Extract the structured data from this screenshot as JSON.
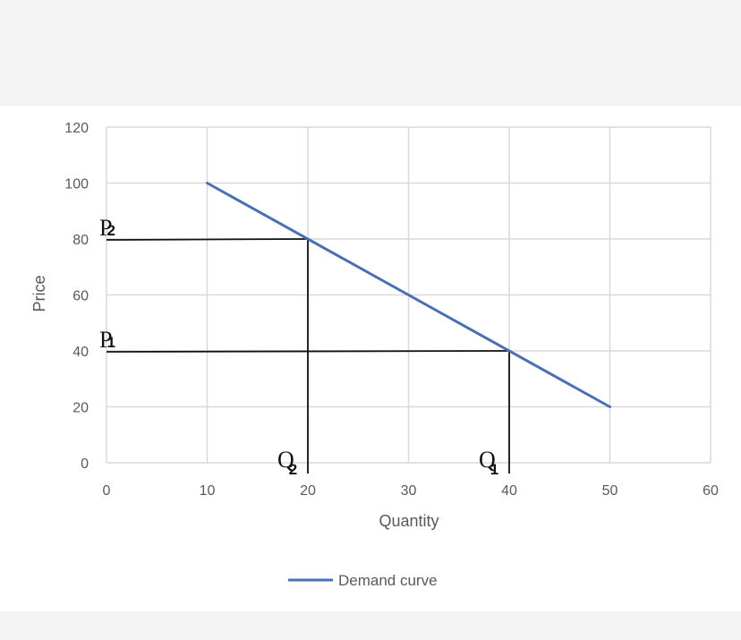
{
  "chart_data": {
    "type": "line",
    "title": "",
    "xlabel": "Quantity",
    "ylabel": "Price",
    "xlim": [
      0,
      60
    ],
    "ylim": [
      0,
      120
    ],
    "xticks": [
      "0",
      "10",
      "20",
      "30",
      "40",
      "50",
      "60"
    ],
    "yticks": [
      "0",
      "20",
      "40",
      "60",
      "80",
      "100",
      "120"
    ],
    "grid": true,
    "legend_position": "bottom",
    "series": [
      {
        "name": "Demand curve",
        "color": "#4a6fb5",
        "x": [
          10,
          50
        ],
        "y": [
          100,
          20
        ]
      }
    ],
    "annotations": [
      {
        "type": "price-line",
        "main": "P",
        "sub": "2",
        "x": 20,
        "y": 80
      },
      {
        "type": "price-line",
        "main": "P",
        "sub": "1",
        "x": 40,
        "y": 40
      },
      {
        "type": "quantity-line",
        "main": "Q",
        "sub": "2",
        "x": 20,
        "y": 80
      },
      {
        "type": "quantity-line",
        "main": "Q",
        "sub": "1",
        "x": 40,
        "y": 40
      }
    ]
  },
  "colors": {
    "grid": "#d9d9d9",
    "axis_text": "#595959",
    "annotation": "#111111"
  }
}
